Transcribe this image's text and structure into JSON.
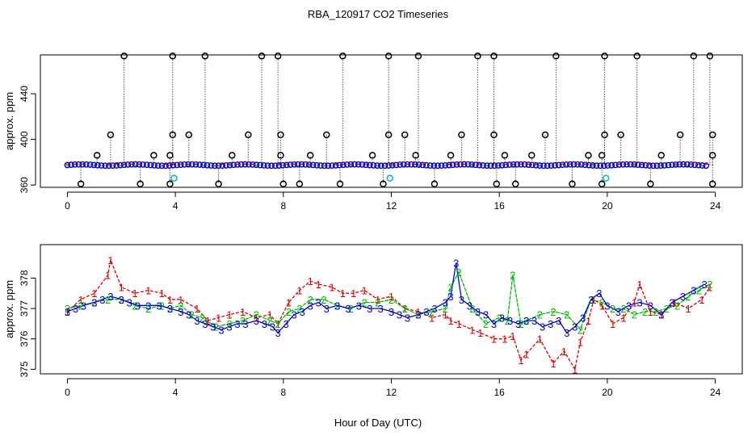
{
  "chart_data": {
    "title": "RBA_120917  CO2 Timeseries",
    "xlabel": "Hour of Day (UTC)",
    "colors": {
      "series1": "#dd0000",
      "series2": "#00bb00",
      "series3": "#0000dd",
      "outlier": "#000000",
      "cyan": "#00bbbb"
    },
    "panels": [
      {
        "type": "scatter",
        "name": "top",
        "ylabel": "approx. ppm",
        "xlim": [
          -1,
          25
        ],
        "ylim": [
          358,
          474
        ],
        "xticks": [
          "0",
          "4",
          "8",
          "12",
          "16",
          "20",
          "24"
        ],
        "yticks": [
          "360",
          "400",
          "440"
        ],
        "baseline_level": 377.5,
        "outlier_high": [
          2.1,
          3.9,
          5.1,
          7.2,
          7.8,
          10.2,
          11.9,
          13.0,
          15.2,
          15.8,
          18.1,
          19.9,
          21.1,
          23.2,
          23.8
        ],
        "outlier_low": [
          0.5,
          2.7,
          3.8,
          5.6,
          8.0,
          8.6,
          10.1,
          11.7,
          13.6,
          15.9,
          16.6,
          18.7,
          19.8,
          21.6,
          23.9
        ],
        "outlier_mid": [
          1.6,
          3.9,
          4.5,
          6.7,
          7.9,
          9.6,
          11.9,
          12.5,
          14.6,
          15.8,
          17.7,
          19.9,
          20.5,
          22.7,
          23.9
        ],
        "outlier_385": [
          1.1,
          3.2,
          3.8,
          6.1,
          7.9,
          9.0,
          11.3,
          12.9,
          14.2,
          16.2,
          17.2,
          19.3,
          19.8,
          22.0,
          23.9
        ],
        "cyan_points": [
          [
            3.95,
            366
          ],
          [
            11.95,
            366
          ],
          [
            19.95,
            366
          ]
        ]
      },
      {
        "type": "line",
        "name": "bottom",
        "ylabel": "approx. ppm",
        "xlim": [
          -1,
          25
        ],
        "ylim": [
          374.85,
          379.1
        ],
        "xticks": [
          "0",
          "4",
          "8",
          "12",
          "16",
          "20",
          "24"
        ],
        "yticks": [
          "375",
          "376",
          "377",
          "378"
        ],
        "series": [
          {
            "name": "1",
            "marker": "1",
            "x": [
              0,
              0.5,
              1,
              1.5,
              1.6,
              2,
              2.5,
              3,
              3.5,
              3.8,
              4.2,
              4.8,
              5.2,
              5.6,
              6,
              6.5,
              7,
              7.5,
              7.8,
              8.2,
              8.6,
              9,
              9.3,
              9.8,
              10.2,
              10.6,
              11,
              11.5,
              12,
              12.5,
              13,
              13.5,
              14,
              14.2,
              14.5,
              15,
              15.3,
              15.8,
              16.2,
              16.5,
              16.8,
              17,
              17.5,
              18,
              18.4,
              18.8,
              19,
              19.3,
              19.5,
              19.8,
              20.2,
              20.6,
              21,
              21.2,
              21.6,
              22,
              22.5,
              23,
              23.5,
              23.8
            ],
            "y": [
              376.9,
              377.3,
              377.5,
              378.1,
              378.6,
              377.7,
              377.5,
              377.6,
              377.5,
              377.3,
              377.3,
              377.0,
              376.6,
              376.7,
              376.8,
              376.9,
              376.7,
              376.8,
              376.5,
              377.2,
              377.6,
              377.9,
              377.8,
              377.7,
              377.5,
              377.5,
              377.6,
              377.3,
              377.4,
              377.0,
              376.9,
              376.7,
              376.8,
              376.6,
              376.5,
              376.3,
              376.2,
              376.0,
              376.0,
              376.1,
              375.3,
              375.5,
              376.0,
              375.2,
              375.6,
              375.0,
              375.9,
              376.6,
              377.3,
              377.1,
              376.5,
              376.7,
              377.2,
              377.8,
              376.9,
              376.8,
              377.2,
              377.0,
              377.3,
              377.7
            ]
          },
          {
            "name": "2",
            "marker": "2",
            "x": [
              0,
              0.5,
              1,
              1.5,
              2,
              2.5,
              3,
              3.5,
              3.8,
              4.2,
              4.6,
              5,
              5.5,
              6,
              6.5,
              7,
              7.5,
              7.8,
              8.2,
              8.6,
              9,
              9.5,
              10,
              10.5,
              11,
              11.5,
              12,
              12.5,
              13,
              13.5,
              14,
              14.2,
              14.5,
              15,
              15.5,
              16,
              16.3,
              16.5,
              16.8,
              17,
              17.5,
              18,
              18.5,
              19,
              19.4,
              19.8,
              20.2,
              20.6,
              21,
              21.4,
              21.8,
              22.2,
              22.6,
              23,
              23.4,
              23.8
            ],
            "y": [
              377.0,
              377.1,
              377.2,
              377.3,
              377.3,
              377.1,
              377.0,
              377.1,
              377.0,
              377.1,
              376.8,
              376.7,
              376.4,
              376.5,
              376.6,
              376.8,
              376.6,
              376.5,
              376.9,
              377.0,
              377.3,
              377.3,
              377.1,
              377.0,
              377.2,
              377.2,
              377.3,
              377.0,
              376.8,
              376.9,
              377.0,
              377.7,
              378.2,
              377.0,
              376.5,
              376.7,
              376.6,
              378.1,
              376.5,
              376.6,
              376.8,
              376.9,
              376.8,
              376.3,
              377.3,
              377.2,
              377.0,
              377.0,
              376.8,
              376.9,
              376.9,
              377.0,
              377.1,
              377.4,
              377.6,
              377.8
            ]
          },
          {
            "name": "3",
            "marker": "3",
            "x": [
              0,
              0.3,
              0.6,
              1,
              1.3,
              1.6,
              2,
              2.3,
              2.6,
              3,
              3.4,
              3.8,
              4.2,
              4.5,
              4.8,
              5.1,
              5.4,
              5.7,
              6,
              6.3,
              6.6,
              7,
              7.3,
              7.6,
              7.8,
              8.1,
              8.4,
              8.7,
              9,
              9.3,
              9.6,
              10,
              10.4,
              10.8,
              11.2,
              11.6,
              12,
              12.3,
              12.6,
              13,
              13.3,
              13.6,
              14,
              14.2,
              14.4,
              14.6,
              14.9,
              15.2,
              15.5,
              15.8,
              16.1,
              16.4,
              16.7,
              17,
              17.3,
              17.6,
              17.9,
              18.2,
              18.5,
              18.8,
              19.1,
              19.4,
              19.7,
              20,
              20.4,
              20.8,
              21.2,
              21.6,
              22,
              22.4,
              22.8,
              23.2,
              23.6
            ],
            "y": [
              376.9,
              377.0,
              377.1,
              377.2,
              377.3,
              377.4,
              377.3,
              377.2,
              377.1,
              377.1,
              377.1,
              377.0,
              376.9,
              376.8,
              376.6,
              376.5,
              376.4,
              376.3,
              376.4,
              376.5,
              376.5,
              376.6,
              376.5,
              376.4,
              376.2,
              376.5,
              376.8,
              376.9,
              377.1,
              377.2,
              377.0,
              377.1,
              377.0,
              377.1,
              377.0,
              377.0,
              376.9,
              376.8,
              376.7,
              376.8,
              376.9,
              377.0,
              377.2,
              377.4,
              378.5,
              377.3,
              377.1,
              376.9,
              376.8,
              376.5,
              376.7,
              376.6,
              376.5,
              376.6,
              376.6,
              376.4,
              376.5,
              376.6,
              376.2,
              376.4,
              376.7,
              377.3,
              377.5,
              377.1,
              376.9,
              377.1,
              377.2,
              377.1,
              376.8,
              377.2,
              377.4,
              377.6,
              377.8
            ]
          }
        ]
      }
    ]
  }
}
